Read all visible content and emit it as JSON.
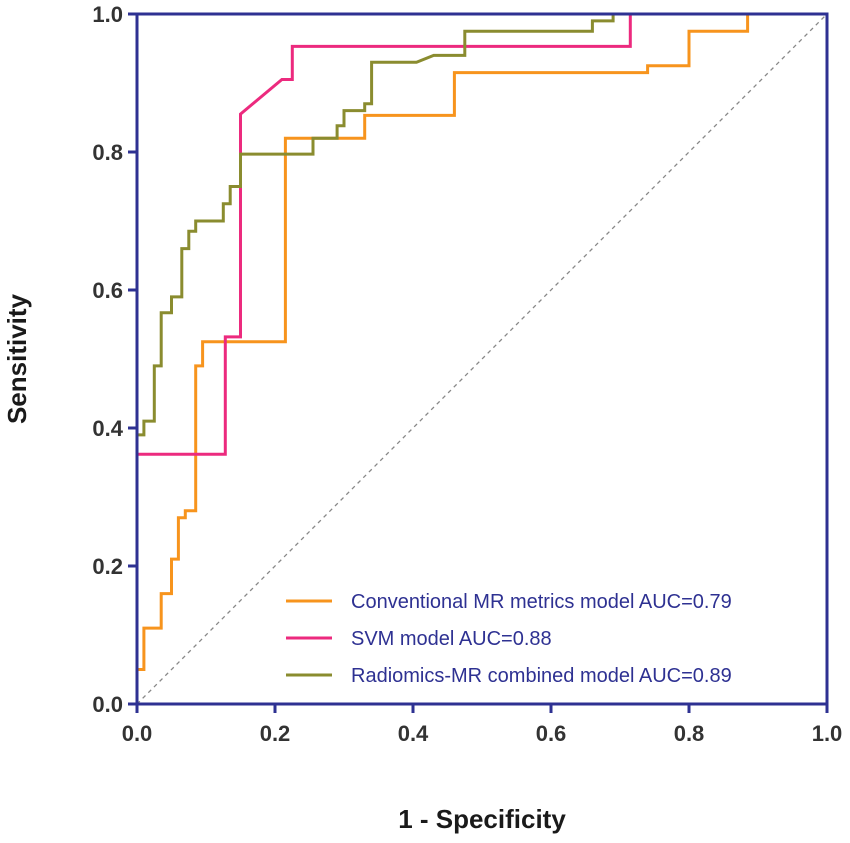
{
  "chart_data": {
    "type": "line",
    "title": "",
    "xlabel": "1 - Specificity",
    "ylabel": "Sensitivity",
    "xlim": [
      0,
      1
    ],
    "ylim": [
      0,
      1
    ],
    "xticks": [
      "0.0",
      "0.2",
      "0.4",
      "0.6",
      "0.8",
      "1.0"
    ],
    "yticks": [
      "0.0",
      "0.2",
      "0.4",
      "0.6",
      "0.8",
      "1.0"
    ],
    "grid": false,
    "legend_position": "bottom-right",
    "axis_color": "#2e3192",
    "reference_line": {
      "name": "chance",
      "color": "#888888",
      "style": "dashed",
      "points": [
        [
          0,
          0
        ],
        [
          1,
          1
        ]
      ]
    },
    "series": [
      {
        "name": "Conventional MR metrics model AUC=0.79",
        "color": "#f7941d",
        "points": [
          [
            0,
            0
          ],
          [
            0,
            0.05
          ],
          [
            0.01,
            0.05
          ],
          [
            0.01,
            0.11
          ],
          [
            0.035,
            0.11
          ],
          [
            0.035,
            0.16
          ],
          [
            0.05,
            0.16
          ],
          [
            0.05,
            0.21
          ],
          [
            0.06,
            0.21
          ],
          [
            0.06,
            0.27
          ],
          [
            0.07,
            0.27
          ],
          [
            0.07,
            0.28
          ],
          [
            0.085,
            0.28
          ],
          [
            0.085,
            0.49
          ],
          [
            0.095,
            0.49
          ],
          [
            0.095,
            0.525
          ],
          [
            0.215,
            0.525
          ],
          [
            0.215,
            0.82
          ],
          [
            0.33,
            0.82
          ],
          [
            0.33,
            0.853
          ],
          [
            0.46,
            0.853
          ],
          [
            0.46,
            0.915
          ],
          [
            0.74,
            0.915
          ],
          [
            0.74,
            0.925
          ],
          [
            0.8,
            0.925
          ],
          [
            0.8,
            0.975
          ],
          [
            0.885,
            0.975
          ],
          [
            0.885,
            1
          ],
          [
            1,
            1
          ]
        ]
      },
      {
        "name": "SVM model AUC=0.88",
        "color": "#ec2a7e",
        "points": [
          [
            0,
            0
          ],
          [
            0,
            0.362
          ],
          [
            0.128,
            0.362
          ],
          [
            0.128,
            0.532
          ],
          [
            0.15,
            0.532
          ],
          [
            0.15,
            0.855
          ],
          [
            0.21,
            0.905
          ],
          [
            0.225,
            0.905
          ],
          [
            0.225,
            0.953
          ],
          [
            0.715,
            0.953
          ],
          [
            0.715,
            1
          ],
          [
            1,
            1
          ]
        ]
      },
      {
        "name": "Radiomics-MR combined model AUC=0.89",
        "color": "#8a8c2f",
        "points": [
          [
            0,
            0
          ],
          [
            0,
            0.39
          ],
          [
            0.01,
            0.39
          ],
          [
            0.01,
            0.41
          ],
          [
            0.025,
            0.41
          ],
          [
            0.025,
            0.49
          ],
          [
            0.035,
            0.49
          ],
          [
            0.035,
            0.567
          ],
          [
            0.05,
            0.567
          ],
          [
            0.05,
            0.59
          ],
          [
            0.065,
            0.59
          ],
          [
            0.065,
            0.66
          ],
          [
            0.075,
            0.66
          ],
          [
            0.075,
            0.685
          ],
          [
            0.085,
            0.685
          ],
          [
            0.085,
            0.7
          ],
          [
            0.125,
            0.7
          ],
          [
            0.125,
            0.725
          ],
          [
            0.135,
            0.725
          ],
          [
            0.135,
            0.75
          ],
          [
            0.15,
            0.75
          ],
          [
            0.15,
            0.797
          ],
          [
            0.255,
            0.797
          ],
          [
            0.255,
            0.82
          ],
          [
            0.29,
            0.82
          ],
          [
            0.29,
            0.838
          ],
          [
            0.3,
            0.838
          ],
          [
            0.3,
            0.86
          ],
          [
            0.33,
            0.86
          ],
          [
            0.33,
            0.87
          ],
          [
            0.34,
            0.87
          ],
          [
            0.34,
            0.93
          ],
          [
            0.405,
            0.93
          ],
          [
            0.43,
            0.94
          ],
          [
            0.475,
            0.94
          ],
          [
            0.475,
            0.975
          ],
          [
            0.66,
            0.975
          ],
          [
            0.66,
            0.99
          ],
          [
            0.69,
            0.99
          ],
          [
            0.69,
            1
          ],
          [
            1,
            1
          ]
        ]
      }
    ]
  }
}
